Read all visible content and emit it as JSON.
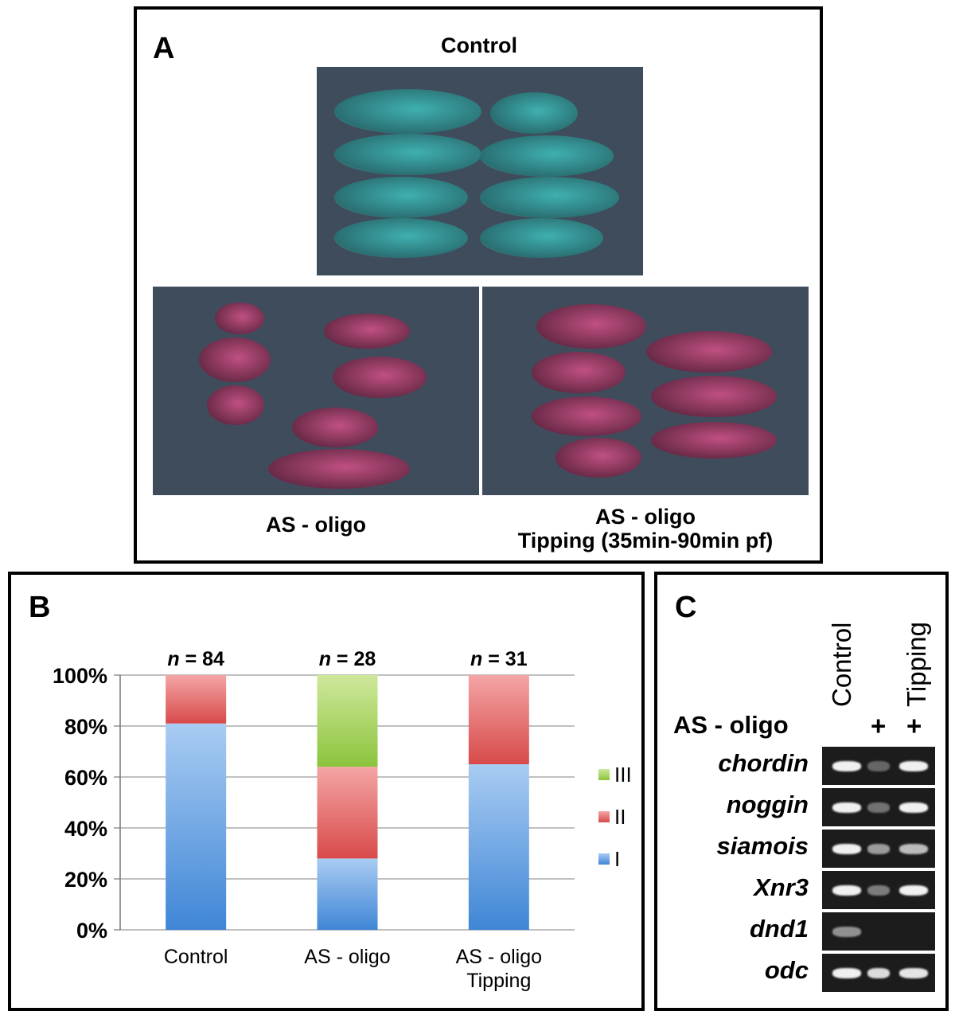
{
  "panel_a": {
    "letter": "A",
    "control_label": "Control",
    "as_oligo_label": "AS - oligo",
    "tipping_label_line1": "AS - oligo",
    "tipping_label_line2": "Tipping (35min-90min pf)"
  },
  "panel_b": {
    "letter": "B"
  },
  "panel_c": {
    "letter": "C",
    "col_control": "Control",
    "col_tipping": "Tipping",
    "row_label": "AS - oligo",
    "plus_2": "+",
    "plus_3": "+",
    "genes": [
      "chordin",
      "noggin",
      "siamois",
      "Xnr3",
      "dnd1",
      "odc"
    ],
    "band_intensity": [
      [
        1.0,
        0.35,
        1.0
      ],
      [
        1.0,
        0.4,
        1.0
      ],
      [
        1.0,
        0.6,
        0.75
      ],
      [
        1.0,
        0.45,
        1.0
      ],
      [
        0.55,
        0.0,
        0.0
      ],
      [
        1.0,
        0.9,
        0.95
      ]
    ]
  },
  "colors": {
    "I": "#4a90d9",
    "II": "#d94a4a",
    "III": "#8cc43c",
    "control_embryo": "#3fa0a0",
    "oligo_embryo": "#b44a72",
    "photo_bg": "#3d4a5a"
  },
  "chart_data": {
    "type": "bar",
    "stacked": true,
    "categories": [
      "Control",
      "AS - oligo",
      "AS - oligo\nTipping"
    ],
    "category_lines": [
      [
        "Control"
      ],
      [
        "AS - oligo"
      ],
      [
        "AS - oligo",
        "Tipping"
      ]
    ],
    "n_labels": [
      "84",
      "28",
      "31"
    ],
    "n_prefix": "n",
    "n_eq": " = ",
    "series": [
      {
        "name": "I",
        "values": [
          81,
          28,
          65
        ]
      },
      {
        "name": "II",
        "values": [
          19,
          36,
          35
        ]
      },
      {
        "name": "III",
        "values": [
          0,
          36,
          0
        ]
      }
    ],
    "ylim": [
      0,
      100
    ],
    "yticks": [
      "0%",
      "20%",
      "40%",
      "60%",
      "80%",
      "100%"
    ],
    "ytick_values": [
      0,
      20,
      40,
      60,
      80,
      100
    ],
    "legend_order": [
      "III",
      "II",
      "I"
    ],
    "legend_position": "right",
    "grid": true
  }
}
